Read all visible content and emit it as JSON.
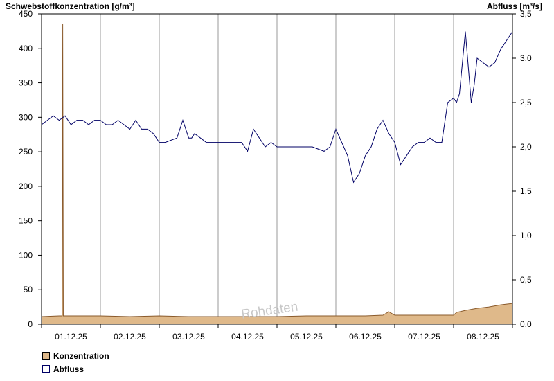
{
  "chart_data": {
    "type": "line",
    "title": "",
    "ylabel": "Schwebstoffkonzentration [g/m³]",
    "y2label": "Abfluss [m³/s]",
    "ylim": [
      0,
      450
    ],
    "y2lim": [
      0,
      3.5
    ],
    "y_ticks": [
      0,
      50,
      100,
      150,
      200,
      250,
      300,
      350,
      400,
      450
    ],
    "y_tick_labels": [
      "0",
      "50",
      "100",
      "150",
      "200",
      "250",
      "300",
      "350",
      "400",
      "450"
    ],
    "y2_ticks": [
      0,
      0.5,
      1.0,
      1.5,
      2.0,
      2.5,
      3.0,
      3.5
    ],
    "y2_tick_labels": [
      "0,0",
      "0,5",
      "1,0",
      "1,5",
      "2,0",
      "2,5",
      "3,0",
      "3,5"
    ],
    "x_start_day": "30.11.25 12:00",
    "xlim_days": [
      0,
      8
    ],
    "date_labels": [
      "01.12.25",
      "02.12.25",
      "03.12.25",
      "04.12.25",
      "05.12.25",
      "06.12.25",
      "07.12.25",
      "08.12.25"
    ],
    "grid": "vertical day lines",
    "watermark": "Rohdaten",
    "series": [
      {
        "name": "Konzentration",
        "axis": "left",
        "kind": "area",
        "color": "#dfb98a",
        "stroke": "#8a5a2b",
        "x": [
          0,
          0.3,
          0.35,
          0.36,
          0.37,
          0.38,
          0.5,
          1.0,
          1.5,
          2.0,
          2.5,
          3.0,
          3.5,
          4.0,
          4.5,
          5.0,
          5.5,
          5.8,
          5.9,
          6.0,
          6.5,
          7.0,
          7.05,
          7.2,
          7.4,
          7.6,
          7.8,
          8.0
        ],
        "y": [
          11,
          12,
          12,
          435,
          12,
          12,
          12,
          12,
          11,
          12,
          11,
          11,
          11,
          11,
          12,
          12,
          12,
          13,
          18,
          13,
          13,
          13,
          17,
          20,
          23,
          25,
          28,
          30
        ]
      },
      {
        "name": "Abfluss",
        "axis": "right",
        "kind": "line",
        "color": "#000066",
        "x": [
          0,
          0.1,
          0.2,
          0.3,
          0.4,
          0.5,
          0.6,
          0.7,
          0.8,
          0.9,
          1.0,
          1.1,
          1.2,
          1.3,
          1.4,
          1.5,
          1.6,
          1.7,
          1.8,
          1.9,
          2.0,
          2.05,
          2.1,
          2.3,
          2.4,
          2.5,
          2.55,
          2.6,
          2.7,
          2.8,
          2.9,
          3.0,
          3.1,
          3.2,
          3.3,
          3.4,
          3.5,
          3.6,
          3.7,
          3.8,
          3.9,
          4.0,
          4.2,
          4.4,
          4.6,
          4.8,
          4.9,
          5.0,
          5.1,
          5.2,
          5.3,
          5.4,
          5.5,
          5.6,
          5.7,
          5.8,
          5.9,
          6.0,
          6.1,
          6.2,
          6.3,
          6.4,
          6.5,
          6.6,
          6.7,
          6.8,
          6.9,
          7.0,
          7.05,
          7.1,
          7.2,
          7.3,
          7.35,
          7.4,
          7.5,
          7.6,
          7.7,
          7.8,
          7.9,
          8.0
        ],
        "y": [
          2.25,
          2.3,
          2.35,
          2.3,
          2.35,
          2.25,
          2.3,
          2.3,
          2.25,
          2.3,
          2.3,
          2.25,
          2.25,
          2.3,
          2.25,
          2.2,
          2.3,
          2.2,
          2.2,
          2.15,
          2.05,
          2.05,
          2.05,
          2.1,
          2.3,
          2.1,
          2.1,
          2.15,
          2.1,
          2.05,
          2.05,
          2.05,
          2.05,
          2.05,
          2.05,
          2.05,
          1.95,
          2.2,
          2.1,
          2.0,
          2.05,
          2.0,
          2.0,
          2.0,
          2.0,
          1.95,
          2.0,
          2.2,
          2.05,
          1.9,
          1.6,
          1.7,
          1.9,
          2.0,
          2.2,
          2.3,
          2.15,
          2.05,
          1.8,
          1.9,
          2.0,
          2.05,
          2.05,
          2.1,
          2.05,
          2.05,
          2.5,
          2.55,
          2.5,
          2.6,
          3.3,
          2.5,
          2.7,
          3.0,
          2.95,
          2.9,
          2.95,
          3.1,
          3.2,
          3.3
        ]
      }
    ]
  },
  "legend": {
    "items": [
      {
        "label": "Konzentration",
        "color": "#dfb98a"
      },
      {
        "label": "Abfluss",
        "color": "#ffffff"
      }
    ]
  }
}
